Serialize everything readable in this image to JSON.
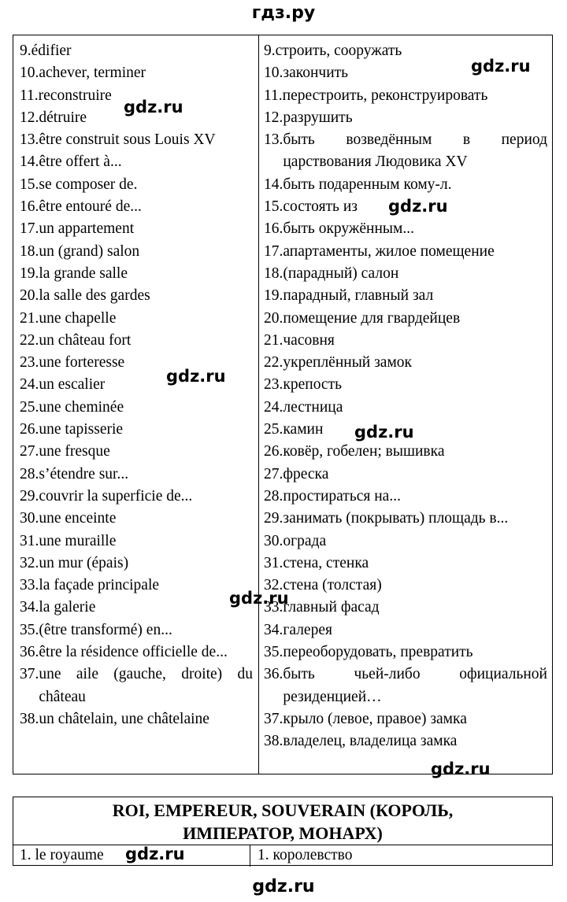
{
  "header": {
    "site": "гдз.ру"
  },
  "footer": {
    "site": "gdz.ru"
  },
  "watermark": "gdz.ru",
  "vocabulary": {
    "french": [
      {
        "num": "9.",
        "text": "édifier"
      },
      {
        "num": "10.",
        "text": "achever, terminer"
      },
      {
        "num": "11.",
        "text": "reconstruire"
      },
      {
        "num": "12.",
        "text": "détruire"
      },
      {
        "num": "13.",
        "text": "être construit sous Louis XV"
      },
      {
        "num": "14.",
        "text": "être offert à..."
      },
      {
        "num": "15.",
        "text": "se composer de."
      },
      {
        "num": "16.",
        "text": "être entouré de..."
      },
      {
        "num": "17.",
        "text": "un appartement"
      },
      {
        "num": "18.",
        "text": "un (grand) salon"
      },
      {
        "num": "19.",
        "text": "la grande salle"
      },
      {
        "num": "20.",
        "text": "la salle des gardes"
      },
      {
        "num": "21.",
        "text": "une chapelle"
      },
      {
        "num": "22.",
        "text": "un château fort"
      },
      {
        "num": "23.",
        "text": "une forteresse"
      },
      {
        "num": "24.",
        "text": "un escalier"
      },
      {
        "num": "25.",
        "text": "une cheminée"
      },
      {
        "num": "26.",
        "text": "une tapisserie"
      },
      {
        "num": "27.",
        "text": "une fresque"
      },
      {
        "num": "28.",
        "text": "s’étendre sur..."
      },
      {
        "num": "29.",
        "text": "couvrir la superficie de..."
      },
      {
        "num": "30.",
        "text": "une enceinte"
      },
      {
        "num": "31.",
        "text": "une muraille"
      },
      {
        "num": "32.",
        "text": "un mur (épais)"
      },
      {
        "num": "33.",
        "text": "la façade principale"
      },
      {
        "num": "34.",
        "text": "la galerie"
      },
      {
        "num": "35.",
        "text": "(être transformé) en..."
      },
      {
        "num": "36.",
        "text": "être la résidence officielle de..."
      },
      {
        "num": "37.",
        "text": "une aile (gauche, droite) du château"
      },
      {
        "num": "38.",
        "text": "un châtelain, une châtelaine"
      }
    ],
    "russian": [
      {
        "num": "9.",
        "text": "строить, сооружать"
      },
      {
        "num": "10.",
        "text": "закончить"
      },
      {
        "num": "11.",
        "text": "перестроить, реконструировать"
      },
      {
        "num": "12.",
        "text": "разрушить"
      },
      {
        "num": "13.",
        "text": "быть возведённым в период царствования Людовика XV"
      },
      {
        "num": "14.",
        "text": "быть подаренным кому-л."
      },
      {
        "num": "15.",
        "text": "состоять из"
      },
      {
        "num": "16.",
        "text": "быть окружённым..."
      },
      {
        "num": "17.",
        "text": "апартаменты, жилое помещение"
      },
      {
        "num": "18.",
        "text": "(парадный) салон"
      },
      {
        "num": "19.",
        "text": "парадный, главный зал"
      },
      {
        "num": "20.",
        "text": "помещение для гвардейцев"
      },
      {
        "num": "21.",
        "text": "часовня"
      },
      {
        "num": "22.",
        "text": "укреплённый замок"
      },
      {
        "num": "23.",
        "text": "крепость"
      },
      {
        "num": "24.",
        "text": "лестница"
      },
      {
        "num": "25.",
        "text": "камин"
      },
      {
        "num": "26.",
        "text": "ковёр, гобелен; вышивка"
      },
      {
        "num": "27.",
        "text": "фреска"
      },
      {
        "num": "28.",
        "text": "простираться на..."
      },
      {
        "num": "29.",
        "text": "занимать (покрывать) площадь в..."
      },
      {
        "num": "30.",
        "text": "ограда"
      },
      {
        "num": "31.",
        "text": "стена, стенка"
      },
      {
        "num": "32.",
        "text": "стена (толстая)"
      },
      {
        "num": "33.",
        "text": "главный фасад"
      },
      {
        "num": "34.",
        "text": "галерея"
      },
      {
        "num": "35.",
        "text": "переоборудовать, превратить"
      },
      {
        "num": "36.",
        "text": "быть чьей-либо официальной резиденцией…"
      },
      {
        "num": "37.",
        "text": "крыло (левое, правое) замка"
      },
      {
        "num": "38.",
        "text": "владелец, владелица замка"
      }
    ]
  },
  "section": {
    "title_line1": "ROI, EMPEREUR, SOUVERAIN (КОРОЛЬ,",
    "title_line2": "ИМПЕРАТОР, МОНАРХ)",
    "first_row": {
      "fr": "1.  le royaume",
      "ru": "1.  королевство"
    }
  }
}
